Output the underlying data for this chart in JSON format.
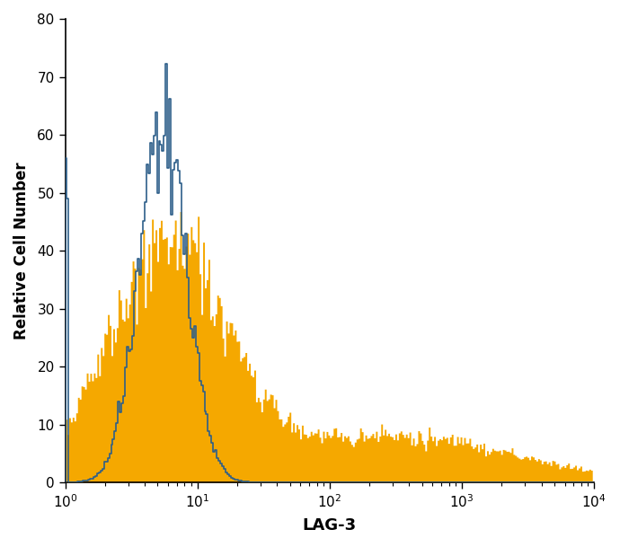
{
  "title": "",
  "xlabel": "LAG-3",
  "ylabel": "Relative Cell Number",
  "xlim": [
    1,
    10000
  ],
  "ylim": [
    0,
    80
  ],
  "yticks": [
    0,
    10,
    20,
    30,
    40,
    50,
    60,
    70,
    80
  ],
  "background_color": "#ffffff",
  "blue_color": "#2e5f8a",
  "orange_color": "#f5a800",
  "xlabel_fontsize": 13,
  "ylabel_fontsize": 12,
  "tick_fontsize": 11,
  "n_bins": 300
}
